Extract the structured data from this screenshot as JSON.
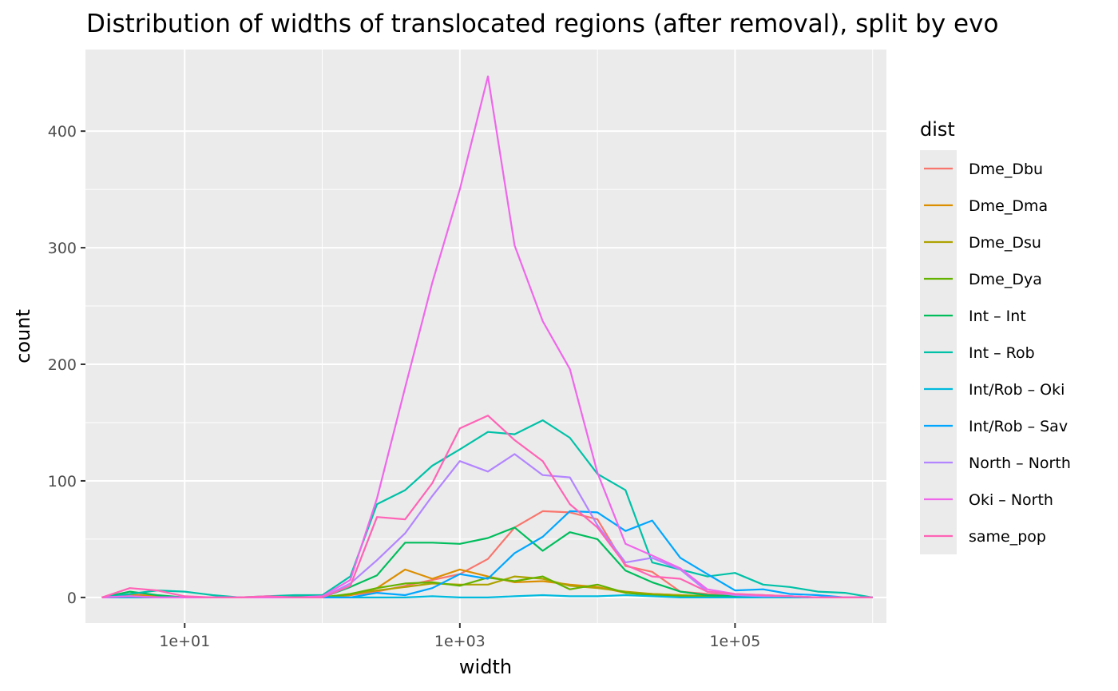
{
  "chart_data": {
    "type": "line",
    "title": "Distribution of widths of translocated regions (after removal), split by evo",
    "xlabel": "width",
    "ylabel": "count",
    "x_scale": "log10",
    "xlim": [
      1.9,
      1260000
    ],
    "ylim": [
      -22,
      470
    ],
    "x_ticks": [
      10,
      1000,
      100000
    ],
    "x_tick_labels": [
      "1e+01",
      "1e+03",
      "1e+05"
    ],
    "y_ticks": [
      0,
      100,
      200,
      300,
      400
    ],
    "y_tick_labels": [
      "0",
      "100",
      "200",
      "300",
      "400"
    ],
    "grid": true,
    "legend": {
      "title": "dist",
      "position": "right"
    },
    "x": [
      2.5,
      4,
      6.3,
      10,
      16,
      25,
      40,
      63,
      100,
      160,
      250,
      400,
      630,
      1000,
      1600,
      2500,
      4000,
      6300,
      10000,
      16000,
      25000,
      40000,
      63000,
      100000,
      160000,
      250000,
      400000,
      630000,
      1000000
    ],
    "series": [
      {
        "name": "Dme_Dbu",
        "color": "#F8766D",
        "values": [
          0,
          3,
          1,
          0,
          0,
          0,
          0,
          0,
          0,
          2,
          5,
          10,
          15,
          20,
          33,
          60,
          74,
          73,
          67,
          27,
          22,
          5,
          3,
          2,
          2,
          1,
          0,
          0,
          0
        ]
      },
      {
        "name": "Dme_Dma",
        "color": "#DB8E00",
        "values": [
          0,
          2,
          1,
          0,
          0,
          0,
          0,
          0,
          0,
          2,
          8,
          24,
          16,
          24,
          18,
          13,
          14,
          11,
          9,
          4,
          3,
          2,
          1,
          1,
          1,
          0,
          0,
          0,
          0
        ]
      },
      {
        "name": "Dme_Dsu",
        "color": "#AEA200",
        "values": [
          0,
          1,
          0,
          0,
          0,
          0,
          0,
          0,
          0,
          3,
          6,
          9,
          12,
          11,
          11,
          18,
          16,
          10,
          8,
          5,
          3,
          2,
          1,
          1,
          0,
          0,
          0,
          0,
          0
        ]
      },
      {
        "name": "Dme_Dya",
        "color": "#64B200",
        "values": [
          0,
          1,
          0,
          0,
          0,
          0,
          0,
          0,
          0,
          3,
          8,
          12,
          13,
          10,
          17,
          14,
          18,
          7,
          11,
          4,
          2,
          1,
          1,
          0,
          0,
          0,
          0,
          0,
          0
        ]
      },
      {
        "name": "Int – Int",
        "color": "#00BD5C",
        "values": [
          0,
          5,
          2,
          0,
          0,
          0,
          0,
          1,
          0,
          9,
          19,
          47,
          47,
          46,
          51,
          60,
          40,
          56,
          50,
          23,
          13,
          5,
          2,
          1,
          1,
          0,
          0,
          0,
          0
        ]
      },
      {
        "name": "Int – Rob",
        "color": "#00C1A7",
        "values": [
          0,
          3,
          6,
          5,
          2,
          0,
          1,
          2,
          2,
          18,
          80,
          92,
          113,
          127,
          142,
          140,
          152,
          137,
          106,
          92,
          30,
          24,
          18,
          21,
          11,
          9,
          5,
          4,
          0
        ]
      },
      {
        "name": "Int/Rob – Oki",
        "color": "#00BADE",
        "values": [
          0,
          0,
          0,
          0,
          0,
          0,
          0,
          0,
          0,
          0,
          0,
          0,
          1,
          0,
          0,
          1,
          2,
          1,
          1,
          2,
          1,
          0,
          0,
          0,
          0,
          0,
          0,
          0,
          0
        ]
      },
      {
        "name": "Int/Rob – Sav",
        "color": "#00A6FF",
        "values": [
          0,
          1,
          0,
          0,
          0,
          0,
          0,
          0,
          0,
          0,
          4,
          2,
          8,
          20,
          16,
          38,
          52,
          74,
          73,
          57,
          66,
          34,
          20,
          6,
          7,
          3,
          2,
          0,
          0
        ]
      },
      {
        "name": "North – North",
        "color": "#B385FF",
        "values": [
          0,
          1,
          0,
          0,
          0,
          0,
          0,
          0,
          0,
          12,
          32,
          55,
          87,
          117,
          108,
          123,
          105,
          103,
          62,
          30,
          34,
          24,
          5,
          2,
          1,
          1,
          0,
          0,
          0
        ]
      },
      {
        "name": "Oki – North",
        "color": "#EF67EB",
        "values": [
          0,
          1,
          0,
          0,
          0,
          0,
          0,
          0,
          1,
          15,
          85,
          180,
          270,
          350,
          447,
          302,
          237,
          196,
          107,
          46,
          36,
          25,
          7,
          3,
          2,
          1,
          0,
          0,
          0
        ]
      },
      {
        "name": "same_pop",
        "color": "#FF63B6",
        "values": [
          0,
          8,
          6,
          1,
          0,
          0,
          1,
          0,
          0,
          10,
          69,
          67,
          98,
          145,
          156,
          135,
          117,
          80,
          60,
          28,
          18,
          16,
          5,
          3,
          2,
          1,
          0,
          0,
          0
        ]
      }
    ]
  }
}
